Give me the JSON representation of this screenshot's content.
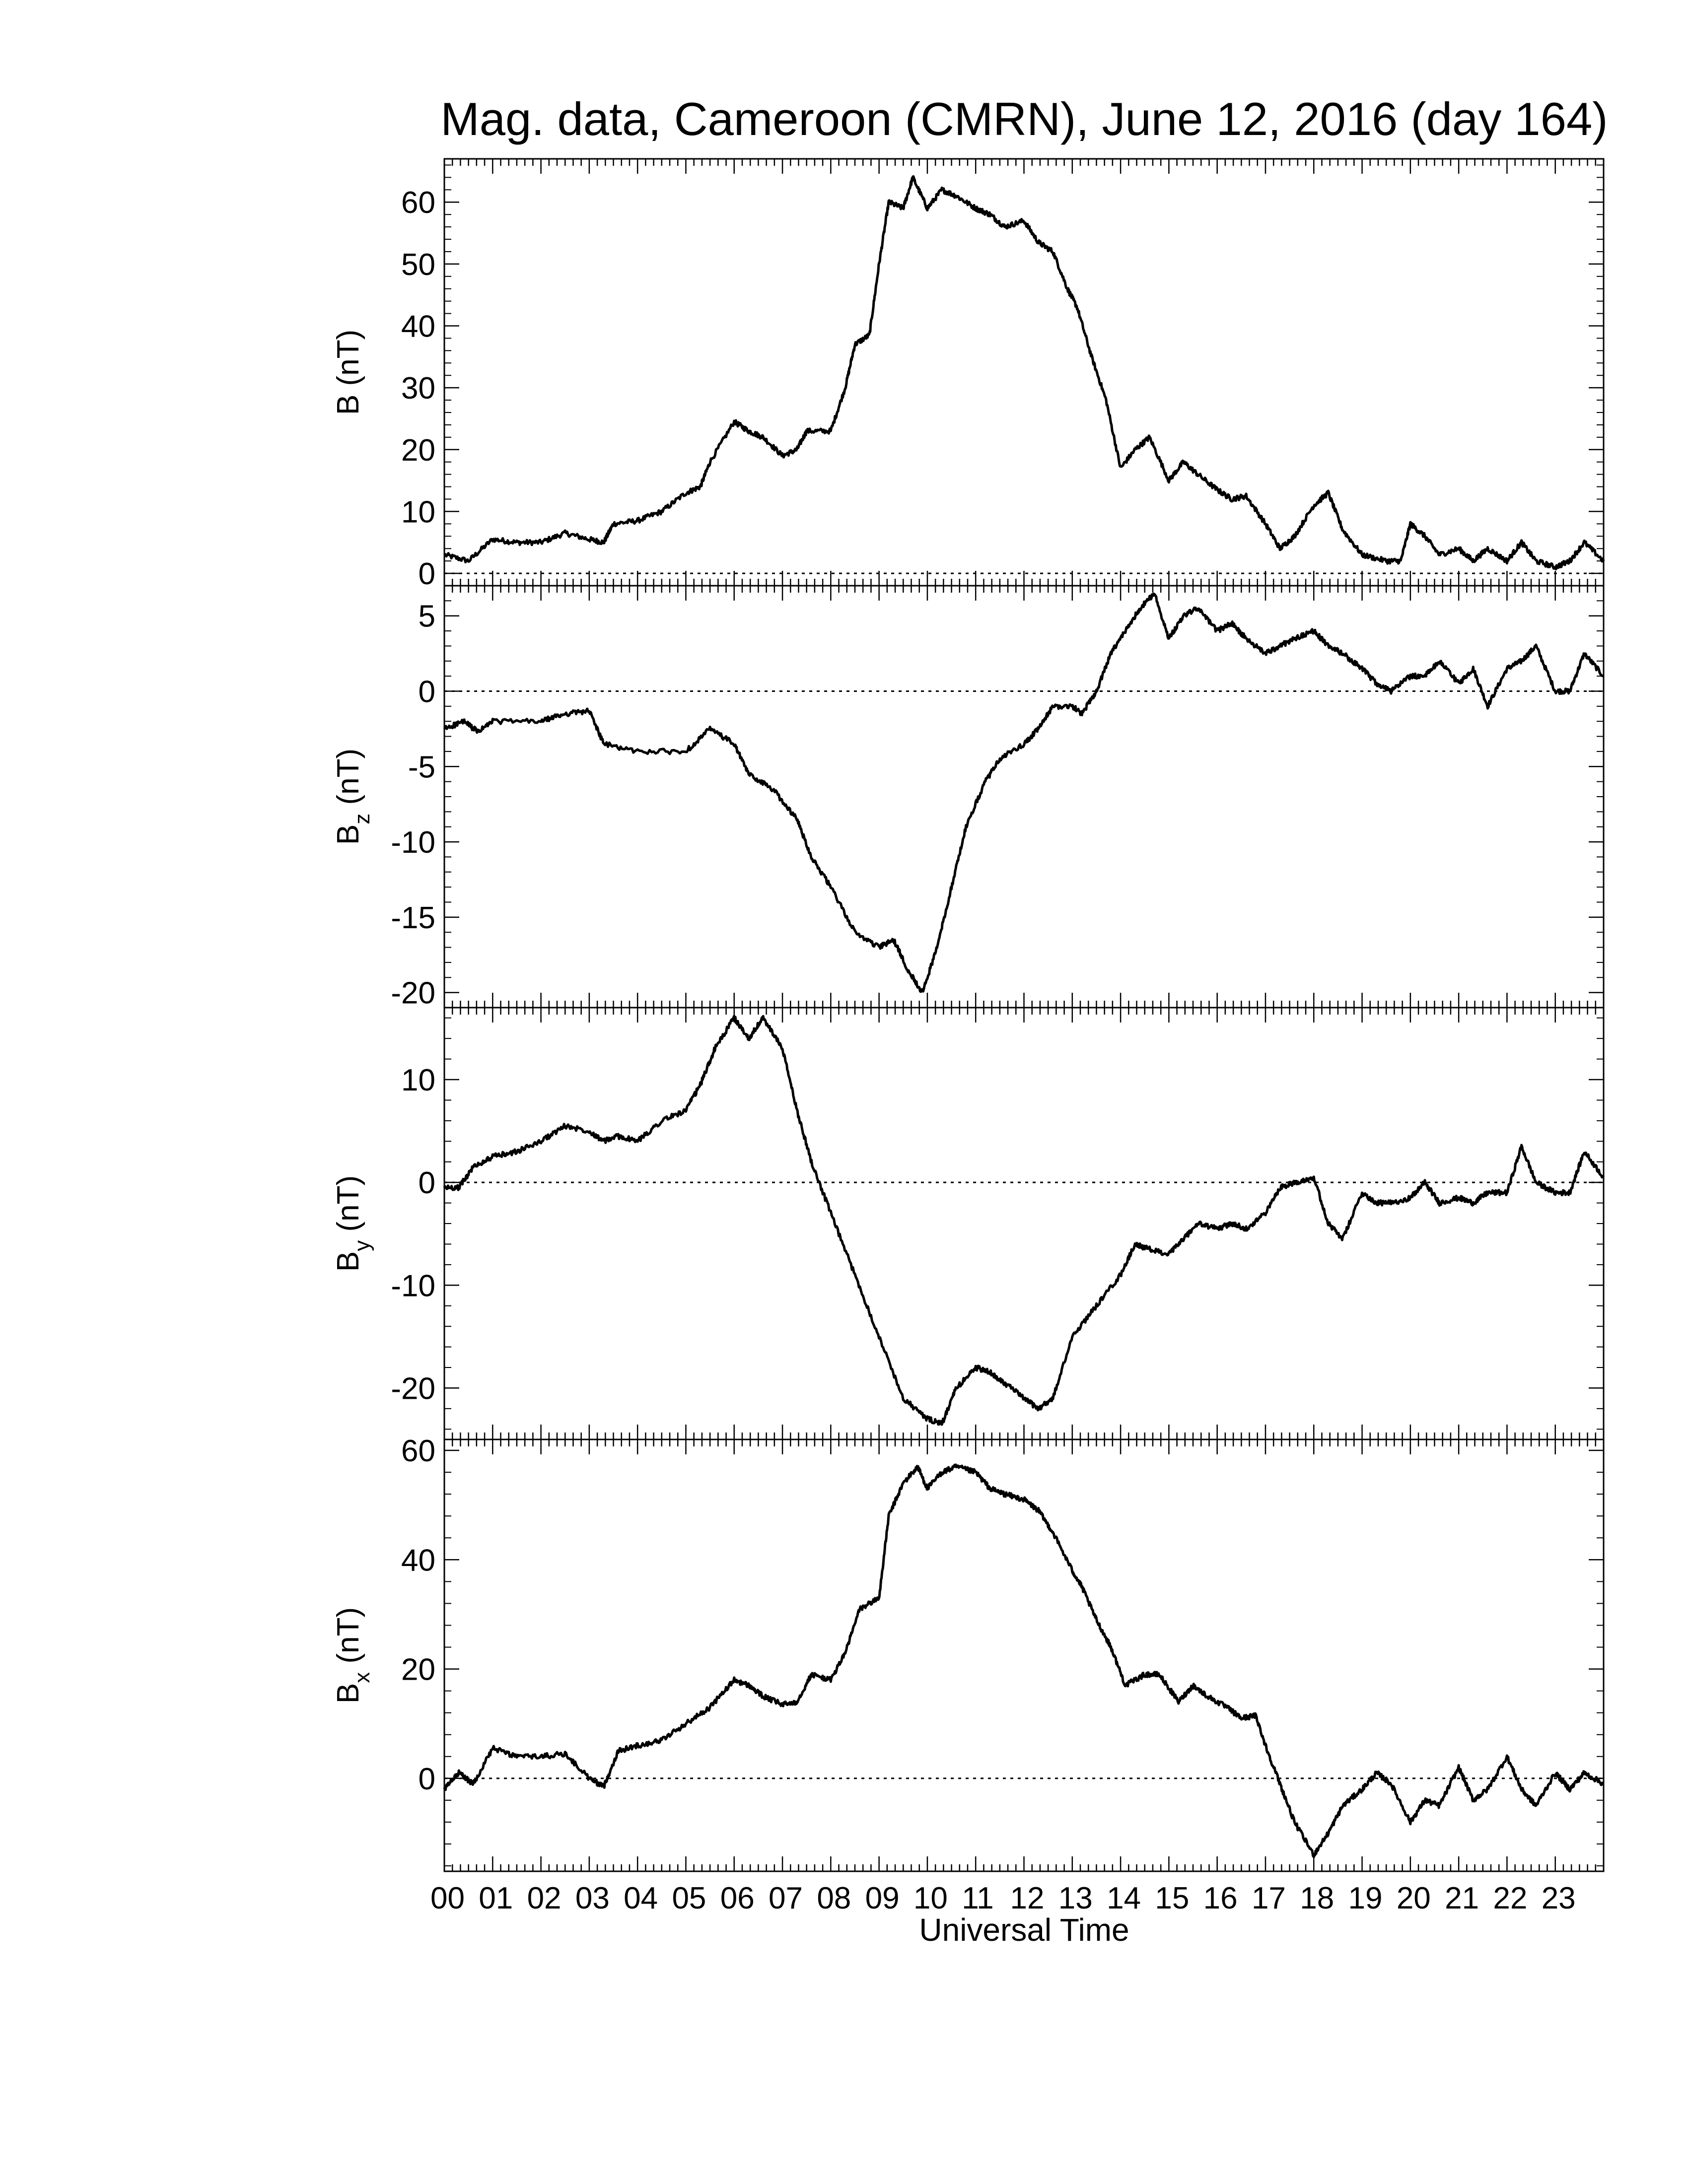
{
  "title": "Mag. data, Cameroon (CMRN), June 12, 2016 (day 164)",
  "xlabel": "Universal Time",
  "x_tick_labels": [
    "00",
    "01",
    "02",
    "03",
    "04",
    "05",
    "06",
    "07",
    "08",
    "09",
    "10",
    "11",
    "12",
    "13",
    "14",
    "15",
    "16",
    "17",
    "18",
    "19",
    "20",
    "21",
    "22",
    "23"
  ],
  "chart_data": [
    {
      "type": "line",
      "ylabel": {
        "base": "B",
        "sub": "",
        "unit": " (nT)"
      },
      "ylim": [
        -2,
        67
      ],
      "yticks": [
        0,
        10,
        20,
        30,
        40,
        50,
        60
      ],
      "zero_line": true,
      "x_unit": "hours UT",
      "points": [
        [
          0,
          3
        ],
        [
          0.5,
          2
        ],
        [
          1,
          5.5
        ],
        [
          1.5,
          5
        ],
        [
          2,
          5
        ],
        [
          2.5,
          6.5
        ],
        [
          3,
          5.5
        ],
        [
          3.3,
          5
        ],
        [
          3.5,
          8
        ],
        [
          4,
          8.5
        ],
        [
          4.5,
          10
        ],
        [
          5,
          13
        ],
        [
          5.3,
          14
        ],
        [
          5.5,
          18
        ],
        [
          6,
          24.5
        ],
        [
          6.3,
          23
        ],
        [
          6.6,
          22
        ],
        [
          7,
          19
        ],
        [
          7.3,
          20
        ],
        [
          7.5,
          23
        ],
        [
          8,
          23
        ],
        [
          8.3,
          30
        ],
        [
          8.5,
          37
        ],
        [
          8.8,
          38.5
        ],
        [
          9,
          50
        ],
        [
          9.2,
          60
        ],
        [
          9.5,
          59
        ],
        [
          9.7,
          64
        ],
        [
          10,
          59
        ],
        [
          10.3,
          62
        ],
        [
          10.6,
          61
        ],
        [
          11,
          59
        ],
        [
          11.3,
          58
        ],
        [
          11.6,
          56
        ],
        [
          12,
          57
        ],
        [
          12.3,
          53.5
        ],
        [
          12.6,
          52
        ],
        [
          12.9,
          46
        ],
        [
          13.1,
          43
        ],
        [
          13.4,
          35
        ],
        [
          13.7,
          28
        ],
        [
          14,
          17
        ],
        [
          14.3,
          20
        ],
        [
          14.6,
          22
        ],
        [
          15,
          15
        ],
        [
          15.3,
          18
        ],
        [
          15.6,
          16
        ],
        [
          16,
          13.5
        ],
        [
          16.3,
          12
        ],
        [
          16.6,
          12.5
        ],
        [
          17,
          8
        ],
        [
          17.3,
          4
        ],
        [
          17.6,
          6
        ],
        [
          18,
          11
        ],
        [
          18.3,
          13
        ],
        [
          18.6,
          7
        ],
        [
          19,
          3
        ],
        [
          19.5,
          2
        ],
        [
          19.8,
          2
        ],
        [
          20,
          8
        ],
        [
          20.3,
          6
        ],
        [
          20.6,
          3
        ],
        [
          21,
          4
        ],
        [
          21.3,
          2
        ],
        [
          21.6,
          4
        ],
        [
          22,
          2
        ],
        [
          22.3,
          5
        ],
        [
          22.6,
          2
        ],
        [
          23,
          1
        ],
        [
          23.3,
          2
        ],
        [
          23.6,
          5
        ],
        [
          24,
          2
        ]
      ]
    },
    {
      "type": "line",
      "ylabel": {
        "base": "B",
        "sub": "z",
        "unit": " (nT)"
      },
      "ylim": [
        -21,
        7
      ],
      "yticks": [
        -20,
        -15,
        -10,
        -5,
        0,
        5
      ],
      "zero_line": true,
      "x_unit": "hours UT",
      "points": [
        [
          0,
          -2.5
        ],
        [
          0.4,
          -2
        ],
        [
          0.7,
          -2.7
        ],
        [
          1,
          -2
        ],
        [
          2,
          -2
        ],
        [
          2.5,
          -1.5
        ],
        [
          3,
          -1.3
        ],
        [
          3.3,
          -3.5
        ],
        [
          4,
          -4
        ],
        [
          5,
          -4
        ],
        [
          5.5,
          -2.5
        ],
        [
          6,
          -3.5
        ],
        [
          6.3,
          -5.5
        ],
        [
          6.8,
          -6.5
        ],
        [
          7.3,
          -8.5
        ],
        [
          7.6,
          -11
        ],
        [
          8,
          -13
        ],
        [
          8.5,
          -16
        ],
        [
          9,
          -17
        ],
        [
          9.3,
          -16.5
        ],
        [
          9.6,
          -18.5
        ],
        [
          9.9,
          -20
        ],
        [
          10.2,
          -17
        ],
        [
          10.5,
          -13
        ],
        [
          10.8,
          -9
        ],
        [
          11.2,
          -6
        ],
        [
          11.5,
          -4.5
        ],
        [
          12,
          -3.5
        ],
        [
          12.3,
          -2.5
        ],
        [
          12.6,
          -1
        ],
        [
          13,
          -1
        ],
        [
          13.2,
          -1.5
        ],
        [
          13.5,
          0
        ],
        [
          13.8,
          2.5
        ],
        [
          14.1,
          4
        ],
        [
          14.4,
          5.5
        ],
        [
          14.7,
          6.5
        ],
        [
          15,
          3.5
        ],
        [
          15.3,
          5
        ],
        [
          15.6,
          5.5
        ],
        [
          16,
          4
        ],
        [
          16.3,
          4.5
        ],
        [
          16.6,
          3.5
        ],
        [
          17,
          2.5
        ],
        [
          17.3,
          3
        ],
        [
          17.6,
          3.5
        ],
        [
          18,
          4
        ],
        [
          18.3,
          3
        ],
        [
          18.6,
          2.5
        ],
        [
          19,
          1.5
        ],
        [
          19.3,
          0.5
        ],
        [
          19.6,
          0
        ],
        [
          20,
          1
        ],
        [
          20.3,
          1
        ],
        [
          20.6,
          2
        ],
        [
          21,
          0.5
        ],
        [
          21.3,
          1.5
        ],
        [
          21.6,
          -1
        ],
        [
          22,
          1.5
        ],
        [
          22.3,
          2
        ],
        [
          22.6,
          3
        ],
        [
          23,
          0
        ],
        [
          23.3,
          0
        ],
        [
          23.6,
          2.5
        ],
        [
          24,
          1
        ]
      ]
    },
    {
      "type": "line",
      "ylabel": {
        "base": "B",
        "sub": "y",
        "unit": " (nT)"
      },
      "ylim": [
        -25,
        17
      ],
      "yticks": [
        -20,
        -10,
        0,
        10
      ],
      "zero_line": true,
      "x_unit": "hours UT",
      "points": [
        [
          0,
          -0.5
        ],
        [
          0.3,
          -0.5
        ],
        [
          0.6,
          1.5
        ],
        [
          1,
          2.5
        ],
        [
          1.5,
          3
        ],
        [
          2,
          4
        ],
        [
          2.5,
          5.5
        ],
        [
          3,
          5
        ],
        [
          3.3,
          4
        ],
        [
          3.6,
          4.5
        ],
        [
          4,
          4
        ],
        [
          4.5,
          6
        ],
        [
          5,
          7
        ],
        [
          5.3,
          9.5
        ],
        [
          5.6,
          13
        ],
        [
          6,
          16
        ],
        [
          6.3,
          14
        ],
        [
          6.6,
          16
        ],
        [
          7,
          13
        ],
        [
          7.3,
          7
        ],
        [
          7.6,
          2
        ],
        [
          8,
          -3
        ],
        [
          8.5,
          -9
        ],
        [
          9,
          -15
        ],
        [
          9.5,
          -21
        ],
        [
          10,
          -23
        ],
        [
          10.3,
          -23.5
        ],
        [
          10.6,
          -20
        ],
        [
          11,
          -18
        ],
        [
          11.3,
          -18.5
        ],
        [
          11.6,
          -19.5
        ],
        [
          12,
          -21
        ],
        [
          12.3,
          -22
        ],
        [
          12.6,
          -21
        ],
        [
          13,
          -15
        ],
        [
          13.5,
          -12
        ],
        [
          14,
          -9
        ],
        [
          14.3,
          -6
        ],
        [
          14.6,
          -6.5
        ],
        [
          15,
          -7
        ],
        [
          15.3,
          -5.5
        ],
        [
          15.6,
          -4
        ],
        [
          16,
          -4.5
        ],
        [
          16.3,
          -4
        ],
        [
          16.6,
          -4.5
        ],
        [
          17,
          -3
        ],
        [
          17.3,
          -0.5
        ],
        [
          17.6,
          0
        ],
        [
          18,
          0.5
        ],
        [
          18.3,
          -4
        ],
        [
          18.6,
          -5.5
        ],
        [
          19,
          -1
        ],
        [
          19.3,
          -2
        ],
        [
          19.6,
          -2
        ],
        [
          20,
          -1.5
        ],
        [
          20.3,
          0
        ],
        [
          20.6,
          -2
        ],
        [
          21,
          -1.5
        ],
        [
          21.3,
          -2
        ],
        [
          21.6,
          -1
        ],
        [
          22,
          -1
        ],
        [
          22.3,
          3.5
        ],
        [
          22.6,
          0
        ],
        [
          23,
          -1
        ],
        [
          23.3,
          -1
        ],
        [
          23.6,
          3
        ],
        [
          24,
          0.5
        ]
      ]
    },
    {
      "type": "line",
      "ylabel": {
        "base": "B",
        "sub": "x",
        "unit": " (nT)"
      },
      "ylim": [
        -17,
        62
      ],
      "yticks": [
        0,
        20,
        40,
        60
      ],
      "zero_line": true,
      "x_unit": "hours UT",
      "points": [
        [
          0,
          -2
        ],
        [
          0.3,
          1
        ],
        [
          0.6,
          -1
        ],
        [
          1,
          5.5
        ],
        [
          1.5,
          4
        ],
        [
          2,
          4
        ],
        [
          2.5,
          4.5
        ],
        [
          3,
          0
        ],
        [
          3.3,
          -1.5
        ],
        [
          3.6,
          5
        ],
        [
          4,
          6
        ],
        [
          4.5,
          7
        ],
        [
          5,
          10
        ],
        [
          5.5,
          13
        ],
        [
          6,
          18
        ],
        [
          6.3,
          17
        ],
        [
          6.6,
          15
        ],
        [
          7,
          13.5
        ],
        [
          7.3,
          14
        ],
        [
          7.6,
          19
        ],
        [
          8,
          18
        ],
        [
          8.3,
          23
        ],
        [
          8.6,
          31
        ],
        [
          9,
          33
        ],
        [
          9.2,
          48
        ],
        [
          9.5,
          54
        ],
        [
          9.8,
          57
        ],
        [
          10,
          53
        ],
        [
          10.3,
          56
        ],
        [
          10.6,
          57
        ],
        [
          11,
          56
        ],
        [
          11.3,
          53
        ],
        [
          11.6,
          52
        ],
        [
          12,
          51
        ],
        [
          12.3,
          49
        ],
        [
          12.6,
          45
        ],
        [
          13,
          38
        ],
        [
          13.2,
          35
        ],
        [
          13.5,
          29
        ],
        [
          13.8,
          24
        ],
        [
          14.1,
          17
        ],
        [
          14.5,
          19
        ],
        [
          14.8,
          19
        ],
        [
          15.2,
          14
        ],
        [
          15.5,
          17
        ],
        [
          15.8,
          15
        ],
        [
          16.2,
          13
        ],
        [
          16.5,
          11
        ],
        [
          16.8,
          11.5
        ],
        [
          17,
          6
        ],
        [
          17.3,
          -1
        ],
        [
          17.6,
          -8
        ],
        [
          18,
          -14
        ],
        [
          18.3,
          -10
        ],
        [
          18.6,
          -5
        ],
        [
          19,
          -2
        ],
        [
          19.3,
          1
        ],
        [
          19.6,
          -1
        ],
        [
          20,
          -8
        ],
        [
          20.3,
          -4
        ],
        [
          20.6,
          -5
        ],
        [
          21,
          2
        ],
        [
          21.3,
          -4
        ],
        [
          21.6,
          -2
        ],
        [
          22,
          4
        ],
        [
          22.3,
          -2
        ],
        [
          22.6,
          -5
        ],
        [
          23,
          1
        ],
        [
          23.3,
          -2
        ],
        [
          23.6,
          1
        ],
        [
          24,
          -1
        ]
      ]
    }
  ]
}
